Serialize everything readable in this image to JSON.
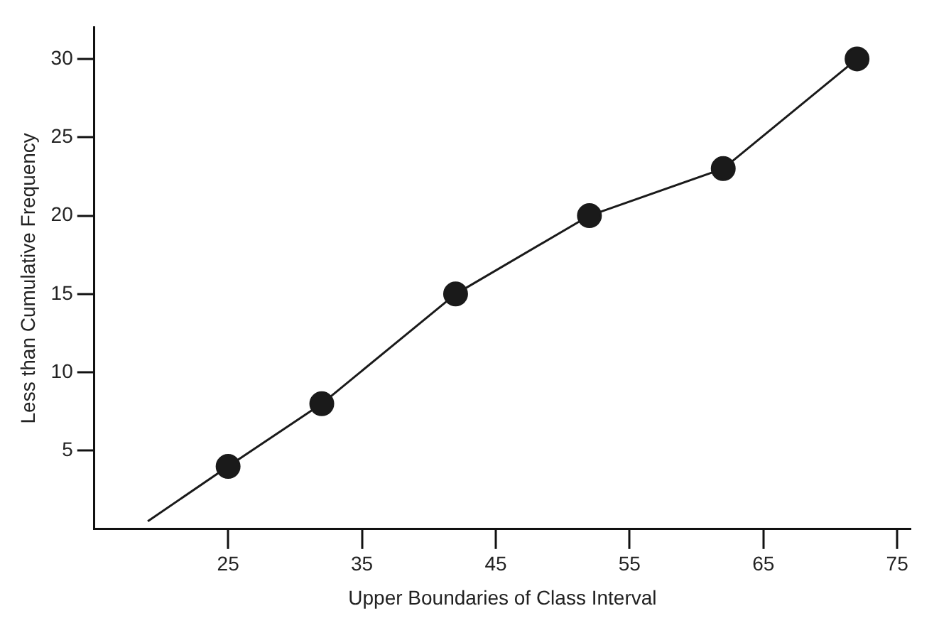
{
  "chart_data": {
    "type": "line",
    "xlabel": "Upper Boundaries of Class Interval",
    "ylabel": "Less than Cumulative Frequency",
    "x": [
      19,
      25,
      32,
      42,
      52,
      62,
      72
    ],
    "series": [
      {
        "color": "#1a1a1a",
        "values": [
          0.5,
          4,
          8,
          15,
          20,
          23,
          30
        ]
      }
    ],
    "xlim": [
      15,
      76
    ],
    "xticks": [
      25,
      35,
      45,
      55,
      65,
      75
    ],
    "ylim": [
      0,
      32
    ],
    "yticks": [
      5,
      10,
      15,
      20,
      25,
      30
    ],
    "grid": false,
    "legend": false,
    "marker": "circle",
    "line_style": "solid"
  }
}
